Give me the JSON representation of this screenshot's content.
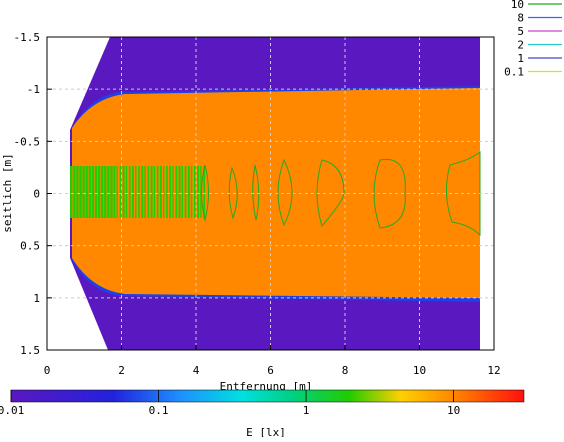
{
  "chart_data": {
    "type": "heatmap",
    "title": "",
    "xlabel": "Entfernung [m]",
    "ylabel": "seitlich [m]",
    "xlim": [
      0,
      12
    ],
    "ylim": [
      1.5,
      -1.5
    ],
    "y_axis_inverted": true,
    "grid": true,
    "legend_position": "top-right",
    "x_ticks": [
      "0",
      "2",
      "4",
      "6",
      "8",
      "10",
      "12"
    ],
    "y_ticks": [
      "-1.5",
      "-1",
      "-0.5",
      "0",
      "0.5",
      "1",
      "1.5"
    ],
    "contour_levels": [
      {
        "label": "10",
        "color": "#22aa22"
      },
      {
        "label": "8",
        "color": "#3366ff"
      },
      {
        "label": "5",
        "color": "#cc44cc"
      },
      {
        "label": "2",
        "color": "#22cccc"
      },
      {
        "label": "1",
        "color": "#4444cc"
      },
      {
        "label": "0.1",
        "color": "#dddd22"
      }
    ],
    "colorbar": {
      "label": "E [lx]",
      "scale": "log",
      "range": [
        0.01,
        30
      ],
      "ticks": [
        "0.01",
        "0.1",
        "1",
        "10"
      ]
    },
    "regions": [
      {
        "name": "background",
        "value_lx": 0.02,
        "color": "#5a18c0"
      },
      {
        "name": "beam",
        "value_lx": 6,
        "color": "#ff8800"
      },
      {
        "name": "core",
        "value_lx": 10,
        "color": "#22cc00"
      }
    ]
  }
}
